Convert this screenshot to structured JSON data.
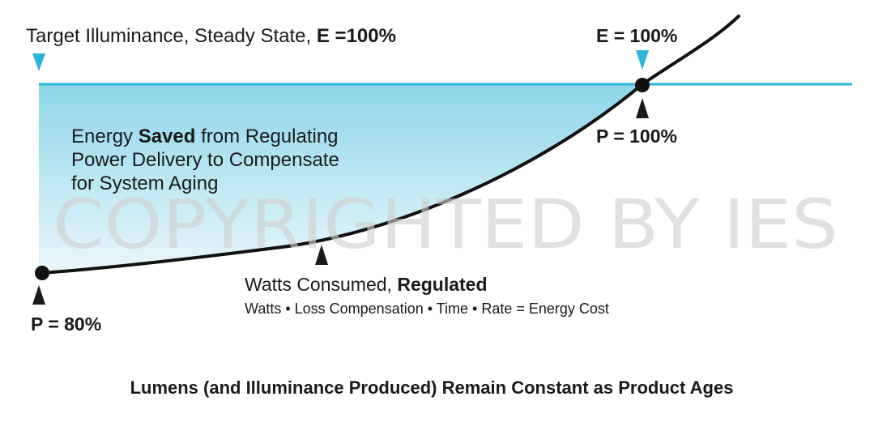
{
  "colors": {
    "target_line": "#2ab3d8",
    "fill_top": "#8ed6ea",
    "fill_bottom": "#eaf7fb",
    "curve": "#111111",
    "marker_cyan": "#29b4d9",
    "marker_black": "#1a1a1a",
    "watermark": "#cfcfcf"
  },
  "target_label": {
    "text": "Target Illuminance, Steady State, ",
    "bold": "E =100%"
  },
  "e_label": "E = 100%",
  "p_top_label": "P = 100%",
  "p_bottom_label": "P = 80%",
  "energy_saved": {
    "line1_pre": "Energy ",
    "line1_bold": "Saved",
    "line1_post": " from Regulating",
    "line2": "Power Delivery to Compensate",
    "line3": "for System Aging"
  },
  "watts_label": {
    "text": "Watts Consumed, ",
    "bold": "Regulated"
  },
  "formula": "Watts • Loss Compensation • Time • Rate = Energy Cost",
  "watermark": "COPYRIGHTED BY IES",
  "caption": "Lumens (and Illuminance Produced) Remain Constant as Product Ages",
  "icons": {
    "target_marker": "triangle-down-icon",
    "e_marker": "triangle-down-icon",
    "p_top_marker": "triangle-up-icon",
    "curve_marker": "triangle-up-icon",
    "p_bottom_marker": "triangle-up-icon"
  }
}
